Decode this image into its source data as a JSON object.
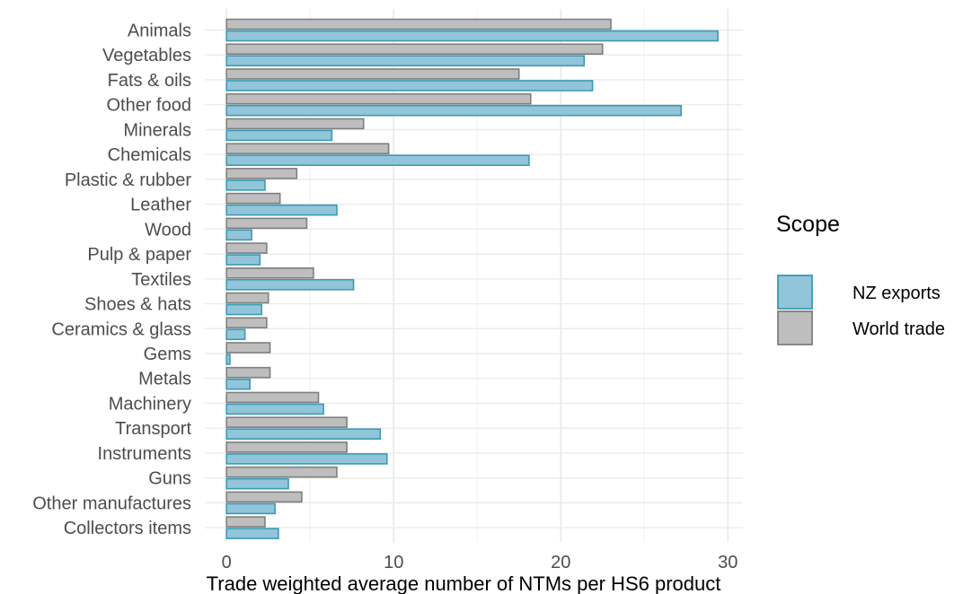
{
  "chart_data": {
    "type": "bar",
    "orientation": "horizontal",
    "categories": [
      "Animals",
      "Vegetables",
      "Fats & oils",
      "Other food",
      "Minerals",
      "Chemicals",
      "Plastic & rubber",
      "Leather",
      "Wood",
      "Pulp & paper",
      "Textiles",
      "Shoes & hats",
      "Ceramics & glass",
      "Gems",
      "Metals",
      "Machinery",
      "Transport",
      "Instruments",
      "Guns",
      "Other manufactures",
      "Collectors items"
    ],
    "series": [
      {
        "name": "World trade",
        "color": "#bebebe",
        "stroke": "#7f7f7f",
        "values": [
          23.0,
          22.5,
          17.5,
          18.2,
          8.2,
          9.7,
          4.2,
          3.2,
          4.8,
          2.4,
          5.2,
          2.5,
          2.4,
          2.6,
          2.6,
          5.5,
          7.2,
          7.2,
          6.6,
          4.5,
          2.3
        ]
      },
      {
        "name": "NZ exports",
        "color": "#92c5d9",
        "stroke": "#3a9bb5",
        "values": [
          29.4,
          21.4,
          21.9,
          27.2,
          6.3,
          18.1,
          2.3,
          6.6,
          1.5,
          2.0,
          7.6,
          2.1,
          1.1,
          0.2,
          1.4,
          5.8,
          9.2,
          9.6,
          3.7,
          2.9,
          3.1
        ]
      }
    ],
    "xlabel": "Trade weighted average number of NTMs per HS6 product",
    "xlim": [
      -1.3,
      30.9
    ],
    "xticks": [
      0,
      10,
      20,
      30
    ],
    "grid": true,
    "legend": {
      "title": "Scope",
      "placement": "right",
      "entries": [
        {
          "label": "NZ exports",
          "color": "#92c5d9",
          "stroke": "#3a9bb5"
        },
        {
          "label": "World trade",
          "color": "#bebebe",
          "stroke": "#7f7f7f"
        }
      ]
    }
  }
}
